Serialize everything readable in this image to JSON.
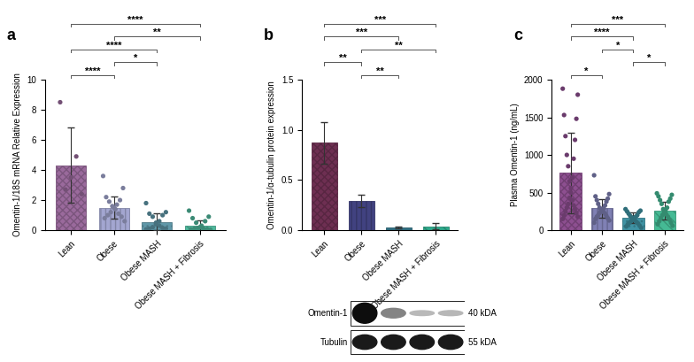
{
  "chart_data": [
    {
      "type": "bar",
      "title": "a",
      "y_label": "Omentin-1/18S mRNA Relative Expression",
      "categories": [
        "Lean",
        "Obese",
        "Obese MASH",
        "Obese MASH + Fibrosis"
      ],
      "values": [
        4.3,
        1.5,
        0.55,
        0.3
      ],
      "errors": [
        2.5,
        0.75,
        0.55,
        0.35
      ],
      "points": [
        [
          8.5,
          4.9,
          3.5,
          2.7,
          2.4
        ],
        [
          3.6,
          2.8,
          2.2,
          2.0,
          1.9,
          1.7,
          1.6,
          1.5,
          1.4,
          1.2,
          1.1,
          1.0,
          0.9,
          0.8,
          0.6
        ],
        [
          1.8,
          1.2,
          1.1,
          1.0,
          0.9,
          0.6,
          0.5,
          0.4,
          0.3,
          0.2,
          0.15,
          0.1,
          0.1,
          0.05
        ],
        [
          1.3,
          0.9,
          0.8,
          0.6,
          0.5,
          0.3,
          0.2,
          0.15,
          0.1,
          0.1,
          0.05,
          0.05,
          0.02
        ]
      ],
      "colors": [
        "#9a6a9c",
        "#a3a6d0",
        "#5f97a8",
        "#4fb89c"
      ],
      "ylim": [
        0,
        10
      ],
      "yticks": [
        0,
        2,
        4,
        6,
        8,
        10
      ],
      "significance": [
        {
          "from": "Lean",
          "to": "Obese",
          "label": "****"
        },
        {
          "from": "Obese",
          "to": "Obese MASH",
          "label": "*"
        },
        {
          "from": "Lean",
          "to": "Obese MASH",
          "label": "****"
        },
        {
          "from": "Obese",
          "to": "Obese MASH + Fibrosis",
          "label": "**"
        },
        {
          "from": "Lean",
          "to": "Obese MASH + Fibrosis",
          "label": "****"
        }
      ]
    },
    {
      "type": "bar",
      "title": "b",
      "y_label": "Omentin-1/α-tubulin protein expression",
      "categories": [
        "Lean",
        "Obese",
        "Obese MASH",
        "Obese MASH + Fibrosis"
      ],
      "values": [
        0.87,
        0.29,
        0.03,
        0.04
      ],
      "errors": [
        0.21,
        0.06,
        0.01,
        0.03
      ],
      "colors": [
        "#6e2f52",
        "#414280",
        "#2f6f82",
        "#2ea98b"
      ],
      "ylim": [
        0,
        1.5
      ],
      "yticks": [
        {
          "value": 0,
          "label": "0.0"
        },
        {
          "value": 0.5,
          "label": "0.5"
        },
        {
          "value": 1.0,
          "label": "1.0"
        },
        {
          "value": 1.5,
          "label": "1.5"
        }
      ],
      "significance": [
        {
          "from": "Obese",
          "to": "Obese MASH",
          "label": "**"
        },
        {
          "from": "Lean",
          "to": "Obese",
          "label": "**"
        },
        {
          "from": "Obese",
          "to": "Obese MASH + Fibrosis",
          "label": "**"
        },
        {
          "from": "Lean",
          "to": "Obese MASH",
          "label": "***"
        },
        {
          "from": "Lean",
          "to": "Obese MASH + Fibrosis",
          "label": "***"
        }
      ],
      "blot": [
        {
          "label": "Omentin-1",
          "size": "40 kDA"
        },
        {
          "label": "Tubulin",
          "size": "55 kDA"
        }
      ]
    },
    {
      "type": "bar",
      "title": "c",
      "y_label": "Plasma Omentin-1 (ng/mL)",
      "categories": [
        "Lean",
        "Obese",
        "Obese MASH",
        "Obese MASH + Fibrosis"
      ],
      "values": [
        760,
        290,
        165,
        260
      ],
      "errors": [
        540,
        120,
        75,
        120
      ],
      "points": [
        [
          1880,
          1800,
          1530,
          1480,
          1250,
          1200,
          1000,
          950,
          850,
          700,
          650,
          560,
          500,
          430,
          400,
          350,
          330,
          300,
          280,
          250,
          230,
          200,
          180,
          150
        ],
        [
          730,
          480,
          450,
          420,
          400,
          380,
          350,
          330,
          300,
          290,
          280,
          270,
          260,
          250,
          240,
          230,
          220,
          200,
          190,
          180,
          160,
          150,
          130,
          100
        ],
        [
          280,
          260,
          250,
          240,
          220,
          200,
          190,
          180,
          170,
          160,
          150,
          140,
          130,
          120,
          110,
          100,
          90,
          80,
          60,
          50,
          30
        ],
        [
          490,
          470,
          450,
          420,
          400,
          380,
          350,
          300,
          280,
          260,
          250,
          230,
          210,
          200,
          180,
          160,
          140,
          120,
          100,
          80,
          60
        ]
      ],
      "colors": [
        "#8d4f90",
        "#7f80b4",
        "#3f92a3",
        "#45ba94"
      ],
      "ylim": [
        0,
        2000
      ],
      "yticks": [
        0,
        500,
        1000,
        1500,
        2000
      ],
      "significance": [
        {
          "from": "Lean",
          "to": "Obese",
          "label": "*"
        },
        {
          "from": "Obese MASH",
          "to": "Obese MASH + Fibrosis",
          "label": "*"
        },
        {
          "from": "Obese",
          "to": "Obese MASH",
          "label": "*"
        },
        {
          "from": "Lean",
          "to": "Obese MASH",
          "label": "****"
        },
        {
          "from": "Lean",
          "to": "Obese MASH + Fibrosis",
          "label": "***"
        }
      ]
    }
  ]
}
